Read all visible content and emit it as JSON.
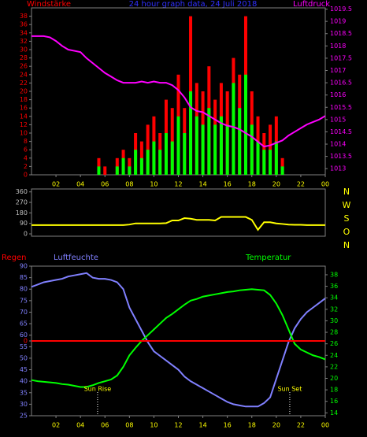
{
  "chart_data": [
    {
      "type": "bar_line",
      "title": "24 hour graph data, 24 Juli 2018",
      "ylabel": "Windstärke",
      "y2label": "Luftdruck",
      "x": [
        0,
        0.5,
        1,
        1.5,
        2,
        2.5,
        3,
        3.5,
        4,
        4.5,
        5,
        5.5,
        6,
        6.5,
        7,
        7.5,
        8,
        8.5,
        9,
        9.5,
        10,
        10.5,
        11,
        11.5,
        12,
        12.5,
        13,
        13.5,
        14,
        14.5,
        15,
        15.5,
        16,
        16.5,
        17,
        17.5,
        18,
        18.5,
        19,
        19.5,
        20,
        20.5,
        21,
        21.5,
        22,
        22.5,
        23,
        23.5,
        24
      ],
      "xlim": [
        0,
        24
      ],
      "xticks": [
        {
          "value": 2,
          "label": "02"
        },
        {
          "value": 4,
          "label": "04"
        },
        {
          "value": 6,
          "label": "06"
        },
        {
          "value": 8,
          "label": "08"
        },
        10,
        12,
        14,
        16,
        18,
        20,
        22,
        {
          "value": 24,
          "label": "00"
        }
      ],
      "ylim": [
        0,
        40
      ],
      "yticks": [
        0,
        2,
        4,
        6,
        8,
        10,
        12,
        14,
        16,
        18,
        20,
        22,
        24,
        26,
        28,
        30,
        32,
        34,
        36,
        38
      ],
      "y2lim": [
        1012.75,
        1019.55
      ],
      "y2ticks": [
        1013,
        1013.5,
        1014,
        1014.5,
        1015,
        1015.5,
        1016,
        1016.5,
        1017,
        1017.5,
        1018,
        1018.5,
        1019,
        1019.5
      ],
      "series": [
        {
          "type": "bar",
          "color": "#ff0000",
          "values": [
            0,
            0,
            0,
            0,
            0,
            0,
            0,
            0,
            0,
            0,
            0,
            4,
            2,
            0,
            4,
            6,
            4,
            10,
            8,
            12,
            14,
            10,
            18,
            16,
            24,
            16,
            38,
            22,
            20,
            26,
            18,
            22,
            20,
            28,
            24,
            38,
            20,
            14,
            10,
            12,
            14,
            4,
            0,
            0,
            0,
            0,
            0,
            0,
            0
          ]
        },
        {
          "type": "bar",
          "color": "#00ff00",
          "values": [
            0,
            0,
            0,
            0,
            0,
            0,
            0,
            0,
            0,
            0,
            0,
            2,
            0,
            0,
            2,
            4,
            2,
            6,
            4,
            6,
            8,
            6,
            10,
            8,
            14,
            10,
            20,
            14,
            12,
            16,
            12,
            14,
            12,
            22,
            16,
            24,
            12,
            8,
            6,
            6,
            8,
            2,
            0,
            0,
            0,
            0,
            0,
            0,
            0
          ]
        },
        {
          "type": "line",
          "color": "#ff00ff",
          "axis": "y2",
          "values": [
            1018.4,
            1018.4,
            1018.4,
            1018.35,
            1018.2,
            1018.0,
            1017.85,
            1017.8,
            1017.75,
            1017.5,
            1017.3,
            1017.1,
            1016.9,
            1016.75,
            1016.6,
            1016.5,
            1016.5,
            1016.5,
            1016.55,
            1016.5,
            1016.55,
            1016.5,
            1016.5,
            1016.4,
            1016.2,
            1015.9,
            1015.5,
            1015.35,
            1015.3,
            1015.15,
            1015.0,
            1014.85,
            1014.75,
            1014.7,
            1014.6,
            1014.45,
            1014.3,
            1014.1,
            1013.9,
            1013.95,
            1014.05,
            1014.15,
            1014.35,
            1014.5,
            1014.65,
            1014.8,
            1014.9,
            1015.0,
            1015.15
          ]
        }
      ]
    },
    {
      "type": "line",
      "x": [
        0,
        0.5,
        1,
        1.5,
        2,
        2.5,
        3,
        3.5,
        4,
        4.5,
        5,
        5.5,
        6,
        6.5,
        7,
        7.5,
        8,
        8.5,
        9,
        9.5,
        10,
        10.5,
        11,
        11.5,
        12,
        12.5,
        13,
        13.5,
        14,
        14.5,
        15,
        15.5,
        16,
        16.5,
        17,
        17.5,
        18,
        18.5,
        19,
        19.5,
        20,
        20.5,
        21,
        21.5,
        22,
        22.5,
        23,
        23.5,
        24
      ],
      "xlim": [
        0,
        24
      ],
      "ylim": [
        -20,
        385
      ],
      "yticks": [
        0,
        90,
        180,
        270,
        360
      ],
      "y2labels": [
        "N",
        "W",
        "S",
        "O",
        "N"
      ],
      "series": [
        {
          "color": "#ffff00",
          "values": [
            75,
            75,
            75,
            75,
            75,
            75,
            75,
            75,
            75,
            75,
            75,
            75,
            75,
            75,
            75,
            75,
            80,
            90,
            90,
            90,
            90,
            90,
            92,
            115,
            115,
            135,
            130,
            120,
            120,
            120,
            115,
            145,
            145,
            145,
            145,
            145,
            120,
            35,
            100,
            100,
            90,
            85,
            80,
            78,
            78,
            75,
            75,
            75,
            75
          ]
        }
      ]
    },
    {
      "type": "line",
      "ylabel": "Luftfeuchte",
      "y2label": "Temperatur",
      "y3label": "Regen",
      "x": [
        0,
        0.5,
        1,
        1.5,
        2,
        2.5,
        3,
        3.5,
        4,
        4.5,
        5,
        5.5,
        6,
        6.5,
        7,
        7.5,
        8,
        8.5,
        9,
        9.5,
        10,
        10.5,
        11,
        11.5,
        12,
        12.5,
        13,
        13.5,
        14,
        14.5,
        15,
        15.5,
        16,
        16.5,
        17,
        17.5,
        18,
        18.5,
        19,
        19.5,
        20,
        20.5,
        21,
        21.5,
        22,
        22.5,
        23,
        23.5,
        24
      ],
      "xlim": [
        0,
        24
      ],
      "xticks": [
        {
          "value": 2,
          "label": "02"
        },
        {
          "value": 4,
          "label": "04"
        },
        {
          "value": 6,
          "label": "06"
        },
        {
          "value": 8,
          "label": "08"
        },
        10,
        12,
        14,
        16,
        18,
        20,
        22,
        {
          "value": 24,
          "label": "00"
        }
      ],
      "ylim": [
        25,
        90
      ],
      "yticks": [
        25,
        30,
        35,
        40,
        45,
        50,
        55,
        60,
        65,
        70,
        75,
        80,
        85,
        90
      ],
      "y2lim": [
        13.5,
        39.5
      ],
      "y2ticks": [
        14,
        16,
        18,
        20,
        22,
        24,
        26,
        28,
        30,
        32,
        34,
        36,
        38
      ],
      "y3lim": [
        -1,
        1
      ],
      "y3ticks": [
        0
      ],
      "series": [
        {
          "color": "#8080ff",
          "values": [
            81,
            82,
            83,
            83.5,
            84,
            84.5,
            85.5,
            86,
            86.5,
            87,
            85,
            84.5,
            84.5,
            84,
            83,
            80,
            72,
            67,
            62,
            57,
            53,
            51,
            49,
            47,
            45,
            42,
            40,
            38.5,
            37,
            35.5,
            34,
            32.5,
            31,
            30,
            29.5,
            29,
            29,
            29,
            30.5,
            33,
            41,
            49,
            57,
            63,
            67,
            70,
            72,
            74,
            76
          ]
        },
        {
          "color": "#00ff00",
          "axis": "y2",
          "values": [
            19.7,
            19.5,
            19.4,
            19.3,
            19.2,
            19.0,
            18.9,
            18.7,
            18.5,
            18.5,
            18.8,
            19.2,
            19.5,
            19.8,
            20.5,
            22,
            24,
            25.3,
            26.5,
            27.5,
            28.5,
            29.5,
            30.5,
            31.2,
            32,
            32.8,
            33.5,
            33.8,
            34.2,
            34.4,
            34.6,
            34.8,
            35,
            35.1,
            35.3,
            35.4,
            35.5,
            35.4,
            35.3,
            34.5,
            33,
            31,
            28.5,
            26,
            25,
            24.5,
            24,
            23.7,
            23.3
          ]
        },
        {
          "color": "#ff0000",
          "axis": "y3",
          "values": [
            0,
            0,
            0,
            0,
            0,
            0,
            0,
            0,
            0,
            0,
            0,
            0,
            0,
            0,
            0,
            0,
            0,
            0,
            0,
            0,
            0,
            0,
            0,
            0,
            0,
            0,
            0,
            0,
            0,
            0,
            0,
            0,
            0,
            0,
            0,
            0,
            0,
            0,
            0,
            0,
            0,
            0,
            0,
            0,
            0,
            0,
            0,
            0,
            0
          ]
        }
      ],
      "annotations": [
        {
          "text": "Sun Rise",
          "x": 5.4
        },
        {
          "text": "Sun Set",
          "x": 21.1
        }
      ]
    }
  ]
}
